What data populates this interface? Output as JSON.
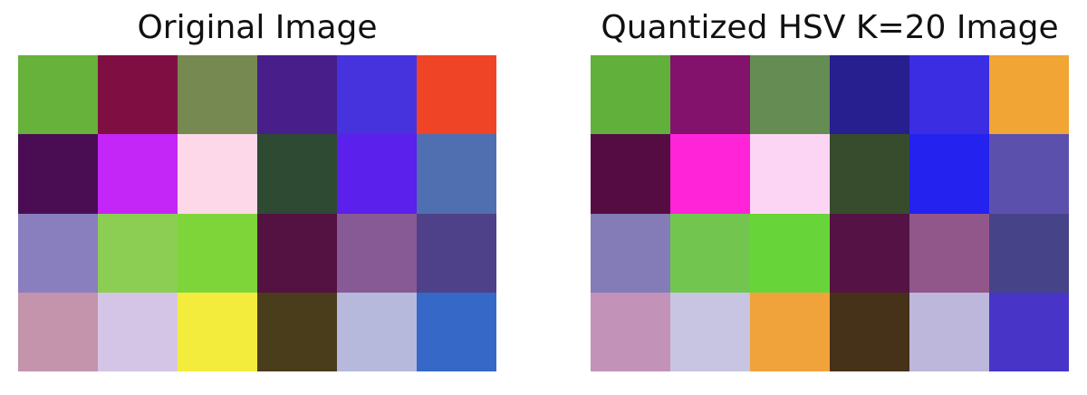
{
  "panels": [
    {
      "title": "Original Image",
      "grid": [
        [
          "#66b23b",
          "#7f0f43",
          "#768951",
          "#481e8a",
          "#4733dd",
          "#f04427"
        ],
        [
          "#4a0d53",
          "#c326f7",
          "#fcd8e8",
          "#2e4a33",
          "#5b20eb",
          "#506fb0"
        ],
        [
          "#8a7fbe",
          "#8ccd54",
          "#7ed53a",
          "#541243",
          "#875a96",
          "#4f4189"
        ],
        [
          "#c394ab",
          "#d4c5e6",
          "#f4ec3c",
          "#4a3d1c",
          "#b6b8dc",
          "#3668c7"
        ]
      ]
    },
    {
      "title": "Quantized HSV K=20 Image",
      "grid": [
        [
          "#62b03c",
          "#82126b",
          "#658c52",
          "#271e8f",
          "#3a2de2",
          "#f1a534"
        ],
        [
          "#550c42",
          "#ff24d8",
          "#fcd5f5",
          "#374c2c",
          "#2322ef",
          "#5c50ad"
        ],
        [
          "#837cb7",
          "#72c650",
          "#67d539",
          "#541344",
          "#91578a",
          "#474388"
        ],
        [
          "#c392b9",
          "#c7c5e1",
          "#f1a33b",
          "#463119",
          "#bcb7db",
          "#4835c8"
        ]
      ]
    }
  ]
}
